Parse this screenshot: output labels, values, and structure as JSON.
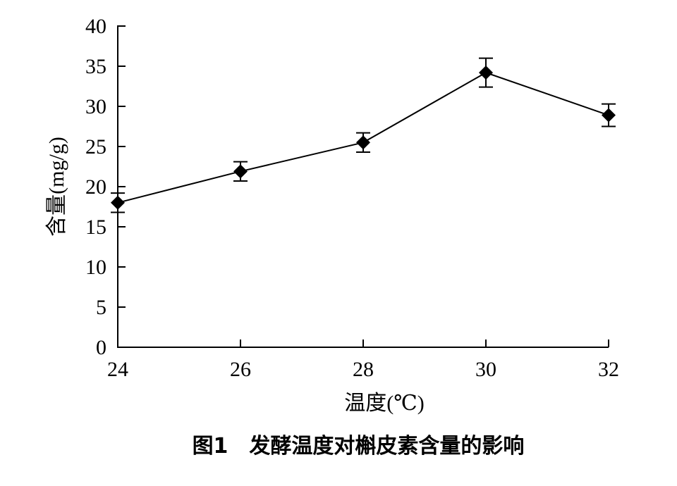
{
  "chart_data": {
    "type": "line",
    "title": "",
    "caption": "图1　发酵温度对槲皮素含量的影响",
    "xlabel": "温度(℃)",
    "ylabel": "含量(mg/g)",
    "xlim": [
      24,
      32
    ],
    "ylim": [
      0,
      40
    ],
    "xticks": [
      "24",
      "26",
      "28",
      "30",
      "32"
    ],
    "yticks": [
      "0",
      "5",
      "10",
      "15",
      "20",
      "25",
      "30",
      "35",
      "40"
    ],
    "grid": false,
    "legend": "none",
    "series": [
      {
        "marker": "diamond",
        "x": [
          24,
          26,
          28,
          30,
          32
        ],
        "y": [
          18.0,
          21.9,
          25.5,
          34.2,
          28.9
        ],
        "error": [
          1.2,
          1.2,
          1.2,
          1.8,
          1.4
        ]
      }
    ],
    "colors": {
      "line": "#000000",
      "marker": "#000000"
    }
  }
}
